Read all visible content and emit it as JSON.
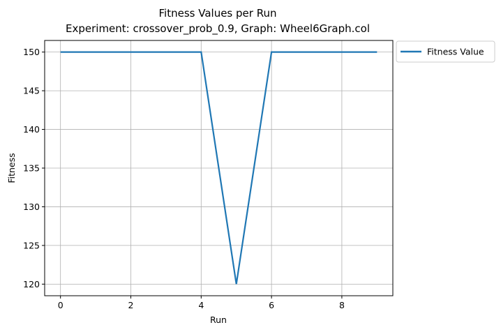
{
  "chart_data": {
    "type": "line",
    "title": "Fitness Values per Run",
    "subtitle": "Experiment: crossover_prob_0.9, Graph: Wheel6Graph.col",
    "xlabel": "Run",
    "ylabel": "Fitness",
    "xlim": [
      -0.45,
      9.45
    ],
    "ylim": [
      118.5,
      151.5
    ],
    "xticks": [
      0,
      2,
      4,
      6,
      8
    ],
    "yticks": [
      120,
      125,
      130,
      135,
      140,
      145,
      150
    ],
    "grid": true,
    "legend_position": "outside-top-right",
    "series": [
      {
        "name": "Fitness Value",
        "color": "#1f77b4",
        "x": [
          0,
          1,
          2,
          3,
          4,
          5,
          6,
          7,
          8,
          9
        ],
        "y": [
          150,
          150,
          150,
          150,
          150,
          120,
          150,
          150,
          150,
          150
        ]
      }
    ]
  }
}
